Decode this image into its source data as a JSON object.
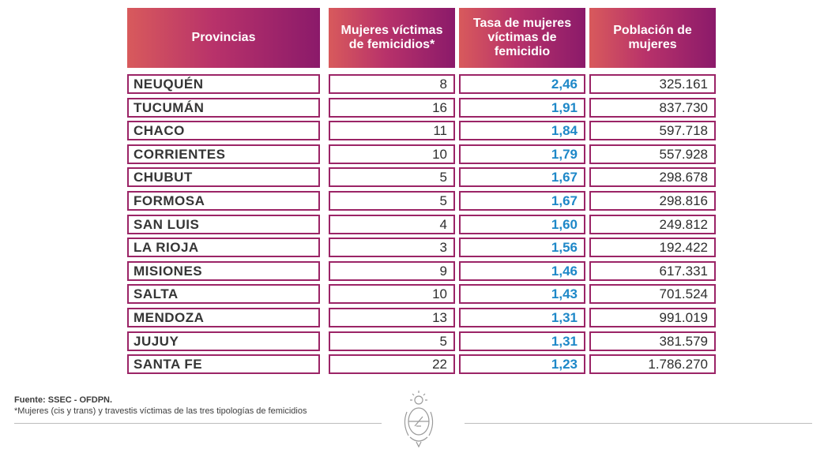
{
  "headers": {
    "provincia": "Provincias",
    "victimas": "Mujeres víctimas de femicidios*",
    "tasa": "Tasa de mujeres víctimas de femicidio",
    "poblacion": "Población de mujeres"
  },
  "rows": [
    {
      "provincia": "NEUQUÉN",
      "victimas": "8",
      "tasa": "2,46",
      "poblacion": "325.161"
    },
    {
      "provincia": "TUCUMÁN",
      "victimas": "16",
      "tasa": "1,91",
      "poblacion": "837.730"
    },
    {
      "provincia": "CHACO",
      "victimas": "11",
      "tasa": "1,84",
      "poblacion": "597.718"
    },
    {
      "provincia": "CORRIENTES",
      "victimas": "10",
      "tasa": "1,79",
      "poblacion": "557.928"
    },
    {
      "provincia": "CHUBUT",
      "victimas": "5",
      "tasa": "1,67",
      "poblacion": "298.678"
    },
    {
      "provincia": "FORMOSA",
      "victimas": "5",
      "tasa": "1,67",
      "poblacion": "298.816"
    },
    {
      "provincia": "SAN LUIS",
      "victimas": "4",
      "tasa": "1,60",
      "poblacion": "249.812"
    },
    {
      "provincia": "LA RIOJA",
      "victimas": "3",
      "tasa": "1,56",
      "poblacion": "192.422"
    },
    {
      "provincia": "MISIONES",
      "victimas": "9",
      "tasa": "1,46",
      "poblacion": "617.331"
    },
    {
      "provincia": "SALTA",
      "victimas": "10",
      "tasa": "1,43",
      "poblacion": "701.524"
    },
    {
      "provincia": "MENDOZA",
      "victimas": "13",
      "tasa": "1,31",
      "poblacion": "991.019"
    },
    {
      "provincia": "JUJUY",
      "victimas": "5",
      "tasa": "1,31",
      "poblacion": "381.579"
    },
    {
      "provincia": "SANTA FE",
      "victimas": "22",
      "tasa": "1,23",
      "poblacion": "1.786.270"
    }
  ],
  "footer": {
    "source": "Fuente: SSEC - OFDPN.",
    "note": "*Mujeres (cis y trans) y travestis víctimas de las tres tipologías de femicidios"
  },
  "colors": {
    "header_start": "#d85a5c",
    "header_end": "#8b1a6a",
    "border": "#9b2466",
    "rate_text": "#1e88c8"
  },
  "icons": {
    "seal": "argentina-coat-of-arms-icon"
  }
}
